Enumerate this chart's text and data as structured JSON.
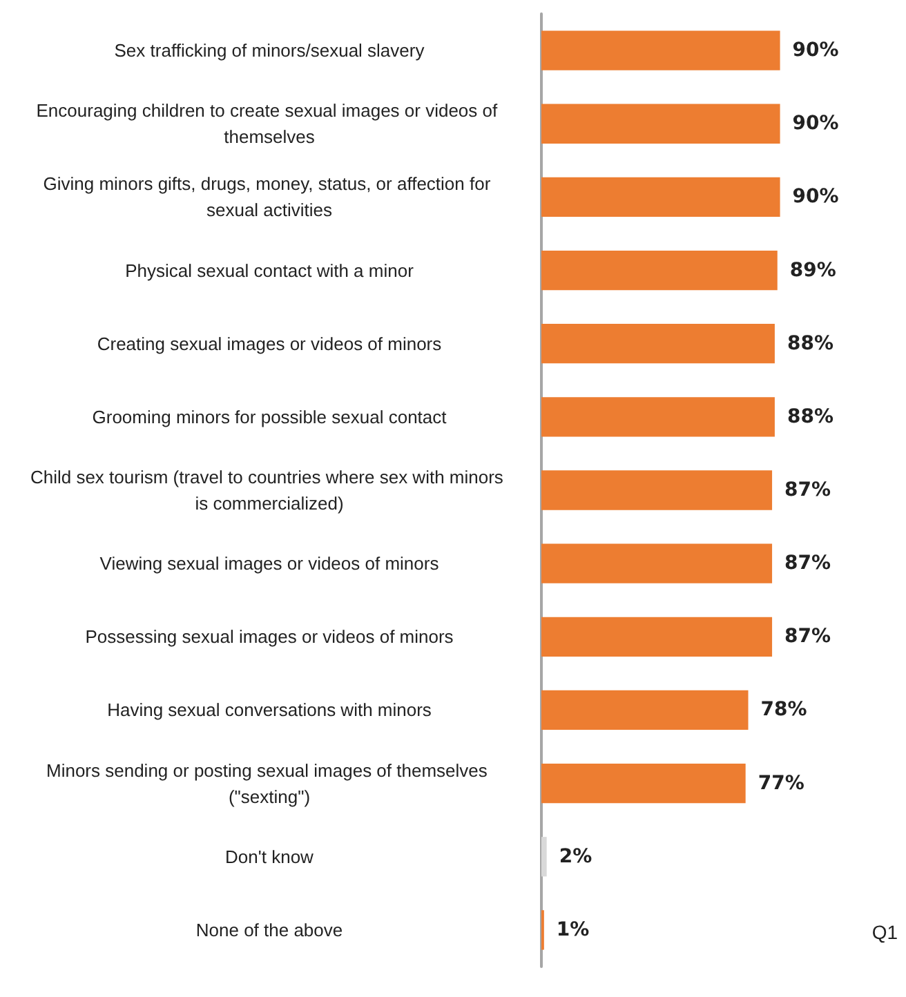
{
  "chart_data": {
    "type": "bar",
    "orientation": "horizontal",
    "categories": [
      "Sex trafficking of minors/sexual slavery",
      "Encouraging children to create sexual images or videos of themselves",
      "Giving minors gifts, drugs, money, status, or affection for sexual activities",
      "Physical sexual contact with a minor",
      "Creating sexual images or videos of minors",
      "Grooming minors for possible sexual contact",
      "Child sex tourism (travel to countries where sex with minors is commercialized)",
      "Viewing sexual images or videos of minors",
      "Possessing sexual images or videos of minors",
      "Having sexual conversations with minors",
      "Minors sending or posting sexual images of themselves (\"sexting\")",
      "Don't know",
      "None of the above"
    ],
    "values": [
      90,
      90,
      90,
      89,
      88,
      88,
      87,
      87,
      87,
      78,
      77,
      2,
      1
    ],
    "colors": [
      "#ed7d31",
      "#ed7d31",
      "#ed7d31",
      "#ed7d31",
      "#ed7d31",
      "#ed7d31",
      "#ed7d31",
      "#ed7d31",
      "#ed7d31",
      "#ed7d31",
      "#ed7d31",
      "#d9d9d9",
      "#ed7d31"
    ],
    "value_labels": [
      "90%",
      "90%",
      "90%",
      "89%",
      "88%",
      "88%",
      "87%",
      "87%",
      "87%",
      "78%",
      "77%",
      "2%",
      "1%"
    ],
    "tick_labels": "y",
    "grid": false,
    "annotations": [
      "Q1"
    ]
  }
}
